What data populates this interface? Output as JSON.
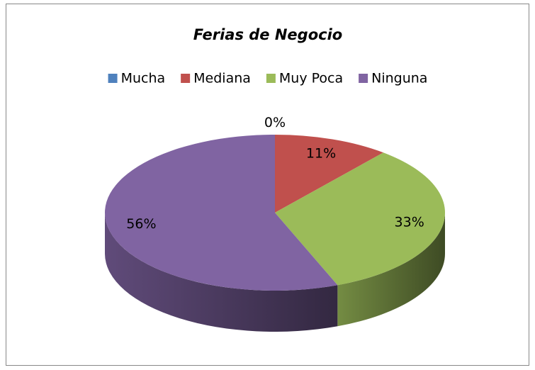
{
  "chart_data": {
    "type": "pie",
    "title": "Ferias de Negocio",
    "categories": [
      "Mucha",
      "Mediana",
      "Muy Poca",
      "Ninguna"
    ],
    "values": [
      0,
      11,
      33,
      56
    ],
    "value_labels": [
      "0%",
      "11%",
      "33%",
      "56%"
    ],
    "colors": [
      "#4f81bd",
      "#c0504d",
      "#9bbb59",
      "#8064a2"
    ],
    "legend": "top"
  }
}
